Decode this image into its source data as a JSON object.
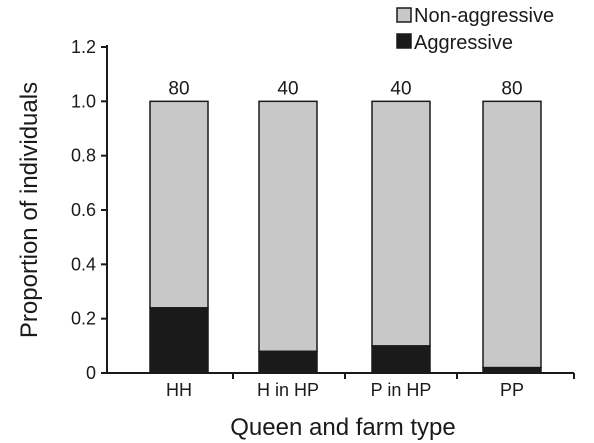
{
  "chart_data": {
    "type": "bar",
    "stacked": true,
    "title": "",
    "xlabel": "Queen and farm type",
    "ylabel": "Proportion of individuals",
    "ylim": [
      0,
      1.2
    ],
    "yticks": [
      "0",
      "0.2",
      "0.4",
      "0.6",
      "0.8",
      "1.0",
      "1.2"
    ],
    "categories": [
      "HH",
      "H in HP",
      "P in HP",
      "PP"
    ],
    "sample_sizes": [
      "80",
      "40",
      "40",
      "80"
    ],
    "series": [
      {
        "name": "Aggressive",
        "color": "#1a1a1a",
        "values": [
          0.24,
          0.08,
          0.1,
          0.02
        ]
      },
      {
        "name": "Non-aggressive",
        "color": "#c8c8c8",
        "values": [
          0.76,
          0.92,
          0.9,
          0.98
        ]
      }
    ],
    "legend": {
      "position": "top-right",
      "entries": [
        "Non-aggressive",
        "Aggressive"
      ]
    }
  }
}
